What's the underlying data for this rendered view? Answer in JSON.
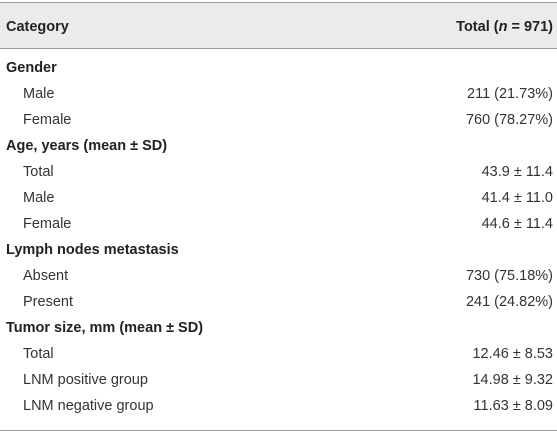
{
  "header": {
    "col1": "Category",
    "col2_prefix": "Total (",
    "col2_italic": "n",
    "col2_suffix": " = 971)"
  },
  "rows": [
    {
      "type": "section",
      "label": "Gender",
      "value": ""
    },
    {
      "type": "item",
      "label": "Male",
      "value": "211 (21.73%)"
    },
    {
      "type": "item",
      "label": "Female",
      "value": "760 (78.27%)"
    },
    {
      "type": "section",
      "label": "Age, years (mean ± SD)",
      "value": ""
    },
    {
      "type": "item",
      "label": "Total",
      "value": "43.9 ± 11.4"
    },
    {
      "type": "item",
      "label": "Male",
      "value": "41.4 ± 11.0"
    },
    {
      "type": "item",
      "label": "Female",
      "value": "44.6 ± 11.4"
    },
    {
      "type": "section",
      "label": "Lymph nodes metastasis",
      "value": ""
    },
    {
      "type": "item",
      "label": "Absent",
      "value": "730 (75.18%)"
    },
    {
      "type": "item",
      "label": "Present",
      "value": "241 (24.82%)"
    },
    {
      "type": "section",
      "label": "Tumor size, mm (mean ± SD)",
      "value": ""
    },
    {
      "type": "item",
      "label": "Total",
      "value": "12.46 ± 8.53"
    },
    {
      "type": "item",
      "label": "LNM positive group",
      "value": "14.98 ± 9.32"
    },
    {
      "type": "item",
      "label": "LNM negative group",
      "value": "11.63 ± 8.09"
    }
  ]
}
